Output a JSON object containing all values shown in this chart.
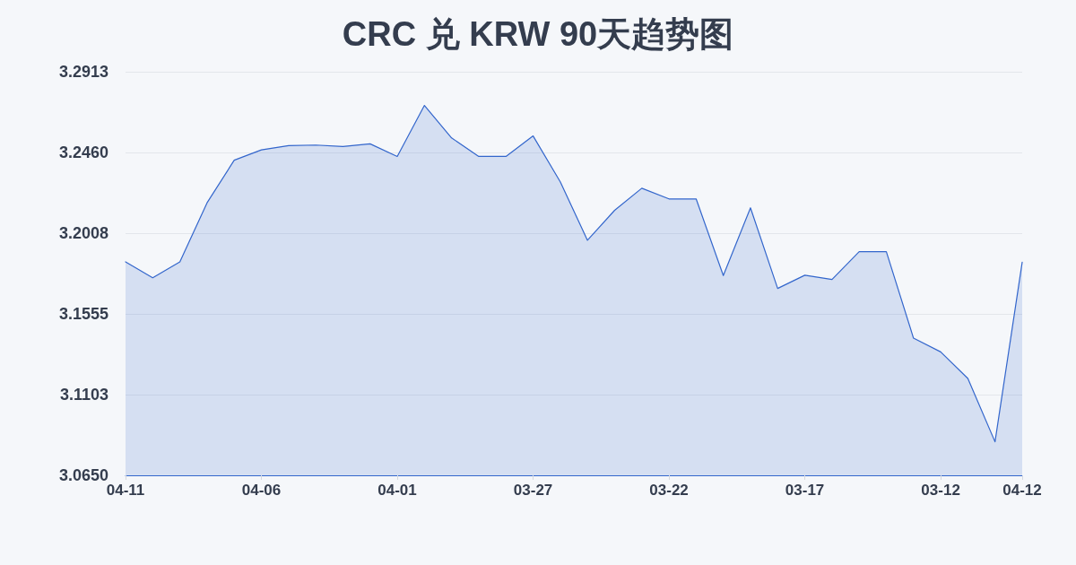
{
  "chart_data": {
    "type": "area",
    "title": "CRC 兑 KRW 90天趋势图",
    "categories": [
      "04-11",
      null,
      null,
      null,
      null,
      "04-06",
      null,
      null,
      null,
      null,
      "04-01",
      null,
      null,
      null,
      null,
      "03-27",
      null,
      null,
      null,
      null,
      "03-22",
      null,
      null,
      null,
      null,
      "03-17",
      null,
      null,
      null,
      null,
      "03-12",
      null,
      null,
      "04-12"
    ],
    "values": [
      3.1847,
      3.1758,
      3.1847,
      3.2178,
      3.2417,
      3.2475,
      3.2499,
      3.2502,
      3.2494,
      3.2509,
      3.2438,
      3.2724,
      3.2542,
      3.2438,
      3.2438,
      3.2553,
      3.2296,
      3.1968,
      3.2136,
      3.226,
      3.22,
      3.22,
      3.177,
      3.215,
      3.1698,
      3.1772,
      3.1748,
      3.1904,
      3.1904,
      3.1419,
      3.1342,
      3.1193,
      3.0838,
      3.1845
    ],
    "color": "#3366cc",
    "ylim": [
      3.065,
      3.2913
    ],
    "yticks": [
      {
        "value": 3.065,
        "label": "3.0650"
      },
      {
        "value": 3.1103,
        "label": "3.1103"
      },
      {
        "value": 3.1555,
        "label": "3.1555"
      },
      {
        "value": 3.2008,
        "label": "3.2008"
      },
      {
        "value": 3.246,
        "label": "3.2460"
      },
      {
        "value": 3.2913,
        "label": "3.2913"
      }
    ],
    "grid": "y",
    "marker": "none"
  }
}
